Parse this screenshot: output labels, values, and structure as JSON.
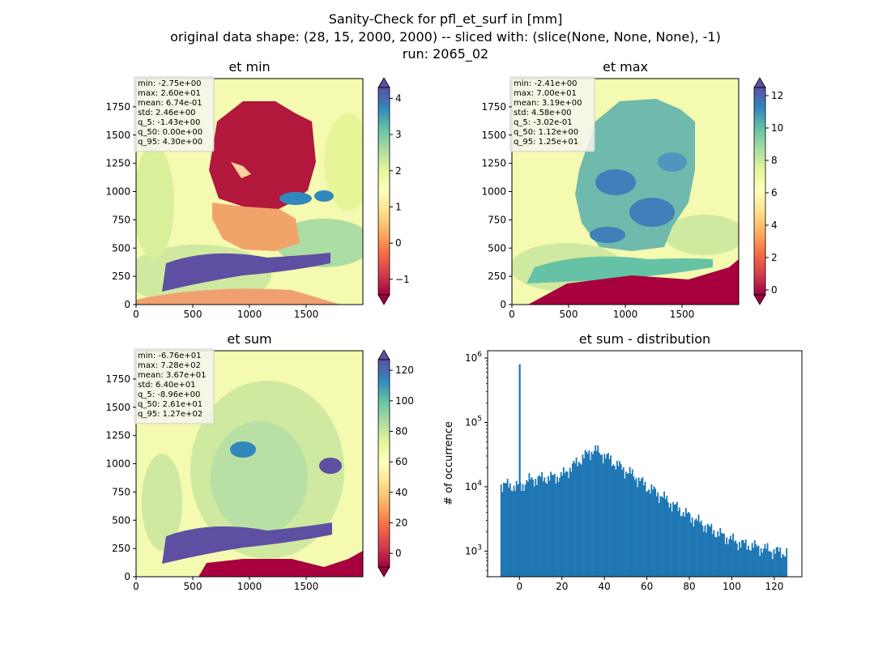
{
  "figure": {
    "title_line1": "Sanity-Check for pfl_et_surf in [mm]",
    "title_line2": "original data shape: (28, 15, 2000, 2000) -- sliced with: (slice(None, None, None), -1)",
    "title_line3": "run: 2065_02"
  },
  "chart_data": [
    {
      "type": "heatmap",
      "title": "et min",
      "x_ticks": [
        0,
        500,
        1000,
        1500
      ],
      "y_ticks": [
        0,
        250,
        500,
        750,
        1000,
        1250,
        1500,
        1750
      ],
      "xlim": [
        0,
        2000
      ],
      "ylim": [
        0,
        2000
      ],
      "colormap": "Spectral",
      "colorbar": {
        "ticks": [
          -1,
          0,
          1,
          2,
          3,
          4
        ],
        "range": [
          -1.43,
          4.3
        ],
        "extend": "both"
      },
      "stats": [
        "min: -2.75e+00",
        "max: 2.60e+01",
        "mean: 6.74e-01",
        "std: 2.46e+00",
        "q_5: -1.43e+00",
        "q_50: 0.00e+00",
        "q_95: 4.30e+00"
      ]
    },
    {
      "type": "heatmap",
      "title": "et max",
      "x_ticks": [
        0,
        500,
        1000,
        1500
      ],
      "y_ticks": [
        0,
        250,
        500,
        750,
        1000,
        1250,
        1500,
        1750
      ],
      "xlim": [
        0,
        2000
      ],
      "ylim": [
        0,
        2000
      ],
      "colormap": "Spectral",
      "colorbar": {
        "ticks": [
          0,
          2,
          4,
          6,
          8,
          10,
          12
        ],
        "range": [
          -0.302,
          12.5
        ],
        "extend": "both"
      },
      "stats": [
        "min: -2.41e+00",
        "max: 7.00e+01",
        "mean: 3.19e+00",
        "std: 4.58e+00",
        "q_5: -3.02e-01",
        "q_50: 1.12e+00",
        "q_95: 1.25e+01"
      ]
    },
    {
      "type": "heatmap",
      "title": "et sum",
      "x_ticks": [
        0,
        500,
        1000,
        1500
      ],
      "y_ticks": [
        0,
        250,
        500,
        750,
        1000,
        1250,
        1500,
        1750
      ],
      "xlim": [
        0,
        2000
      ],
      "ylim": [
        0,
        2000
      ],
      "colormap": "Spectral",
      "colorbar": {
        "ticks": [
          0,
          20,
          40,
          60,
          80,
          100,
          120
        ],
        "range": [
          -8.96,
          127
        ],
        "extend": "both"
      },
      "stats": [
        "min: -6.76e+01",
        "max: 7.28e+02",
        "mean: 3.67e+01",
        "std: 6.40e+01",
        "q_5: -8.96e+00",
        "q_50: 2.61e+01",
        "q_95: 1.27e+02"
      ]
    },
    {
      "type": "bar",
      "title": "et sum - distribution",
      "ylabel": "# of occurrence",
      "y_scale": "log",
      "xlim": [
        -15,
        133
      ],
      "ylim": [
        400,
        1300000
      ],
      "x_ticks": [
        0,
        20,
        40,
        60,
        80,
        100,
        120
      ],
      "y_ticks": [
        {
          "value": 1000,
          "mant": "10",
          "exp": "3"
        },
        {
          "value": 10000,
          "mant": "10",
          "exp": "4"
        },
        {
          "value": 100000,
          "mant": "10",
          "exp": "5"
        },
        {
          "value": 1000000,
          "mant": "10",
          "exp": "6"
        }
      ],
      "bin_width": 0.6,
      "x": [
        -8.96,
        0,
        5,
        10,
        15,
        20,
        25,
        30,
        35,
        40,
        45,
        50,
        55,
        60,
        65,
        70,
        75,
        80,
        85,
        90,
        95,
        100,
        105,
        110,
        115,
        120,
        126
      ],
      "values": [
        11000,
        10000,
        13000,
        13500,
        14000,
        15000,
        21000,
        29000,
        38000,
        31000,
        23000,
        18000,
        14000,
        10000,
        8000,
        6000,
        4500,
        3500,
        2800,
        2200,
        1800,
        1500,
        1300,
        1200,
        1100,
        1000,
        950
      ],
      "spike": {
        "x": 0,
        "value": 800000
      },
      "color": "#1f77b4"
    }
  ]
}
